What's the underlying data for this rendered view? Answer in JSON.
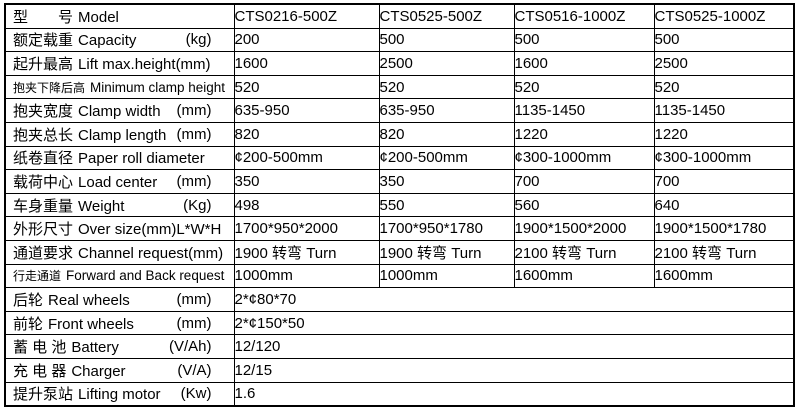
{
  "colors": {
    "border": "#000000",
    "background": "#ffffff",
    "text": "#000000"
  },
  "table": {
    "header": {
      "label_cn": "型　　号",
      "label_en": "Model",
      "models": [
        "CTS0216-500Z",
        "CTS0525-500Z",
        "CTS0516-1000Z",
        "CTS0525-1000Z"
      ]
    },
    "rows": [
      {
        "cn": "额定载重",
        "en": "Capacity",
        "unit": "(kg)",
        "values": [
          "200",
          "500",
          "500",
          "500"
        ]
      },
      {
        "cn": "起升最高",
        "en": "Lift max.height(mm)",
        "unit": "",
        "values": [
          "1600",
          "2500",
          "1600",
          "2500"
        ]
      },
      {
        "cn": "抱夹下降后高",
        "en": "Minimum clamp height",
        "unit": "",
        "small": true,
        "values": [
          "520",
          "520",
          "520",
          "520"
        ]
      },
      {
        "cn": "抱夹宽度",
        "en": "Clamp width",
        "unit": "(mm)",
        "values": [
          "635-950",
          "635-950",
          "1135-1450",
          "1135-1450"
        ]
      },
      {
        "cn": "抱夹总长",
        "en": "Clamp length",
        "unit": "(mm)",
        "values": [
          "820",
          "820",
          "1220",
          "1220"
        ]
      },
      {
        "cn": "纸卷直径",
        "en": "Paper roll diameter",
        "unit": "",
        "values": [
          "¢200-500mm",
          "¢200-500mm",
          "¢300-1000mm",
          "¢300-1000mm"
        ]
      },
      {
        "cn": "载荷中心",
        "en": "Load center",
        "unit": "(mm)",
        "values": [
          "350",
          "350",
          "700",
          "700"
        ]
      },
      {
        "cn": "车身重量",
        "en": "Weight",
        "unit": "(Kg)",
        "values": [
          "498",
          "550",
          "560",
          "640"
        ]
      },
      {
        "cn": "外形尺寸",
        "en": "Over size(mm)L*W*H",
        "unit": "",
        "values": [
          "1700*950*2000",
          "1700*950*1780",
          "1900*1500*2000",
          "1900*1500*1780"
        ]
      },
      {
        "cn": "通道要求",
        "en": "Channel request(mm)",
        "unit": "",
        "values": [
          "1900 转弯 Turn",
          "1900 转弯 Turn",
          "2100 转弯 Turn",
          "2100 转弯 Turn"
        ]
      },
      {
        "cn": "行走通道",
        "en": "Forward and Back request",
        "unit": "",
        "small": true,
        "values": [
          "1000mm",
          "1000mm",
          "1600mm",
          "1600mm"
        ]
      },
      {
        "cn": "后轮",
        "en": "Real wheels",
        "unit": "(mm)",
        "span": "2*¢80*70"
      },
      {
        "cn": "前轮",
        "en": "Front wheels",
        "unit": "(mm)",
        "span": "2*¢150*50"
      },
      {
        "cn": "蓄 电 池",
        "en": "Battery",
        "unit": "(V/Ah)",
        "span": "12/120"
      },
      {
        "cn": "充 电 器",
        "en": "Charger",
        "unit": "(V/A)",
        "span": "12/15"
      },
      {
        "cn": "提升泵站",
        "en": "Lifting motor",
        "unit": "(Kw)",
        "span": "1.6"
      }
    ]
  }
}
